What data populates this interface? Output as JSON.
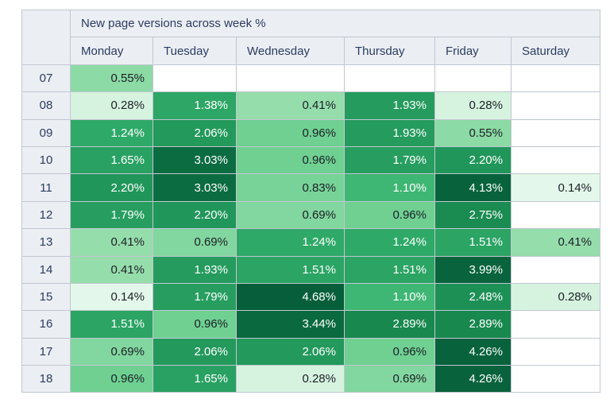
{
  "chart_data": {
    "type": "heatmap",
    "title": "New page versions across week %",
    "value_suffix": "%",
    "columns": [
      "Monday",
      "Tuesday",
      "Wednesday",
      "Thursday",
      "Friday",
      "Saturday"
    ],
    "row_labels": [
      "07",
      "08",
      "09",
      "10",
      "11",
      "12",
      "13",
      "14",
      "15",
      "16",
      "17",
      "18"
    ],
    "values_percent": [
      [
        0.55,
        null,
        null,
        null,
        null,
        null
      ],
      [
        0.28,
        1.38,
        0.41,
        1.93,
        0.28,
        null
      ],
      [
        1.24,
        2.06,
        0.96,
        1.93,
        0.55,
        null
      ],
      [
        1.65,
        3.03,
        0.96,
        1.79,
        2.2,
        null
      ],
      [
        2.2,
        3.03,
        0.83,
        1.1,
        4.13,
        0.14
      ],
      [
        1.79,
        2.2,
        0.69,
        0.96,
        2.75,
        null
      ],
      [
        0.41,
        0.69,
        1.24,
        1.24,
        1.51,
        0.41
      ],
      [
        0.41,
        1.93,
        1.51,
        1.51,
        3.99,
        null
      ],
      [
        0.14,
        1.79,
        4.68,
        1.1,
        2.48,
        0.28
      ],
      [
        1.51,
        0.96,
        3.44,
        2.89,
        2.89,
        null
      ],
      [
        0.69,
        2.06,
        2.06,
        0.96,
        4.26,
        null
      ],
      [
        0.96,
        1.65,
        0.28,
        0.69,
        4.26,
        null
      ]
    ],
    "value_range": [
      0.14,
      4.68
    ],
    "color_scale": {
      "stops": [
        [
          0.14,
          "#e3f8ea"
        ],
        [
          0.28,
          "#d6f3df"
        ],
        [
          0.41,
          "#96ddac"
        ],
        [
          0.96,
          "#6fd092"
        ],
        [
          1.1,
          "#3eb674"
        ],
        [
          1.24,
          "#2fa968"
        ],
        [
          2.2,
          "#21965a"
        ],
        [
          2.89,
          "#18884f"
        ],
        [
          3.03,
          "#0c6c41"
        ],
        [
          4.68,
          "#065f3a"
        ]
      ],
      "white_text_min": 1.1,
      "dark_text_color": "#1b2026",
      "light_text_color": "#ffffff",
      "empty_cell_color": "#ffffff"
    }
  },
  "theme": {
    "page_bg": "#ffffff",
    "header_bg": "#ebeef3",
    "header_text": "#2b3c61",
    "border_color": "#c1c7d1"
  }
}
